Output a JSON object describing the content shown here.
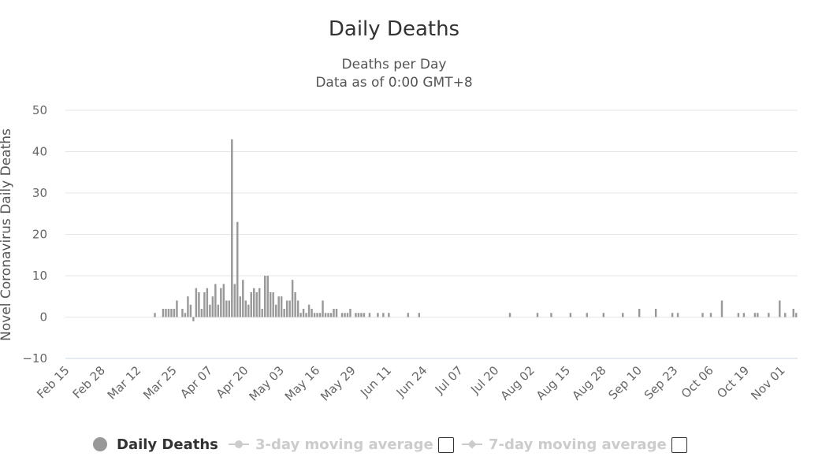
{
  "chart_data": {
    "type": "bar",
    "title": "Daily Deaths",
    "subtitle_line1": "Deaths per Day",
    "subtitle_line2": "Data as of 0:00 GMT+8",
    "ylabel": "Novel Coronavirus Daily Deaths",
    "xlabel": "",
    "ylim": [
      -10,
      50
    ],
    "yticks": [
      50,
      40,
      30,
      20,
      10,
      0,
      -10
    ],
    "ytick_labels": [
      "50",
      "40",
      "30",
      "20",
      "10",
      "0",
      "−10"
    ],
    "x_start": "Feb 15",
    "x_tick_labels": [
      "Feb 15",
      "Feb 28",
      "Mar 12",
      "Mar 25",
      "Apr 07",
      "Apr 20",
      "May 03",
      "May 16",
      "May 29",
      "Jun 11",
      "Jun 24",
      "Jul 07",
      "Jul 20",
      "Aug 02",
      "Aug 15",
      "Aug 28",
      "Sep 10",
      "Sep 23",
      "Oct 06",
      "Oct 19",
      "Nov 01"
    ],
    "x_tick_offsets": [
      0,
      13,
      26,
      39,
      52,
      65,
      78,
      91,
      104,
      117,
      130,
      143,
      156,
      169,
      182,
      195,
      208,
      221,
      234,
      247,
      260
    ],
    "total_days": 266,
    "grid": true,
    "bar_color": "#999999",
    "series": [
      {
        "name": "Daily Deaths",
        "day_offsets": [
          32,
          35,
          36,
          37,
          38,
          39,
          40,
          42,
          43,
          44,
          45,
          46,
          47,
          48,
          49,
          50,
          51,
          52,
          53,
          54,
          55,
          56,
          57,
          58,
          59,
          60,
          61,
          62,
          63,
          64,
          65,
          66,
          67,
          68,
          69,
          70,
          71,
          72,
          73,
          74,
          75,
          76,
          77,
          78,
          79,
          80,
          81,
          82,
          83,
          84,
          85,
          86,
          87,
          88,
          89,
          90,
          91,
          92,
          93,
          94,
          95,
          96,
          97,
          98,
          100,
          101,
          102,
          103,
          105,
          106,
          107,
          108,
          110,
          113,
          115,
          117,
          124,
          128,
          161,
          171,
          176,
          183,
          189,
          195,
          202,
          208,
          214,
          220,
          222,
          231,
          234,
          238,
          244,
          246,
          250,
          251,
          255,
          259,
          261,
          264,
          265
        ],
        "values": [
          1,
          2,
          2,
          2,
          2,
          2,
          4,
          2,
          1,
          5,
          3,
          -1,
          7,
          6,
          2,
          6,
          7,
          3,
          5,
          8,
          3,
          7,
          8,
          4,
          4,
          43,
          8,
          23,
          5,
          9,
          4,
          3,
          6,
          7,
          6,
          7,
          2,
          10,
          10,
          6,
          6,
          3,
          5,
          5,
          2,
          4,
          4,
          9,
          6,
          4,
          1,
          2,
          1,
          3,
          2,
          1,
          1,
          1,
          4,
          1,
          1,
          1,
          2,
          2,
          1,
          1,
          1,
          2,
          1,
          1,
          1,
          1,
          1,
          1,
          1,
          1,
          1,
          1,
          1,
          1,
          1,
          1,
          1,
          1,
          1,
          2,
          2,
          1,
          1,
          1,
          1,
          4,
          1,
          1,
          1,
          1,
          1,
          4,
          1,
          2,
          1
        ]
      }
    ]
  },
  "legend": {
    "items": [
      {
        "label": "Daily Deaths",
        "active": true
      },
      {
        "label": "3-day moving average",
        "active": false
      },
      {
        "label": "7-day moving average",
        "active": false
      }
    ]
  }
}
